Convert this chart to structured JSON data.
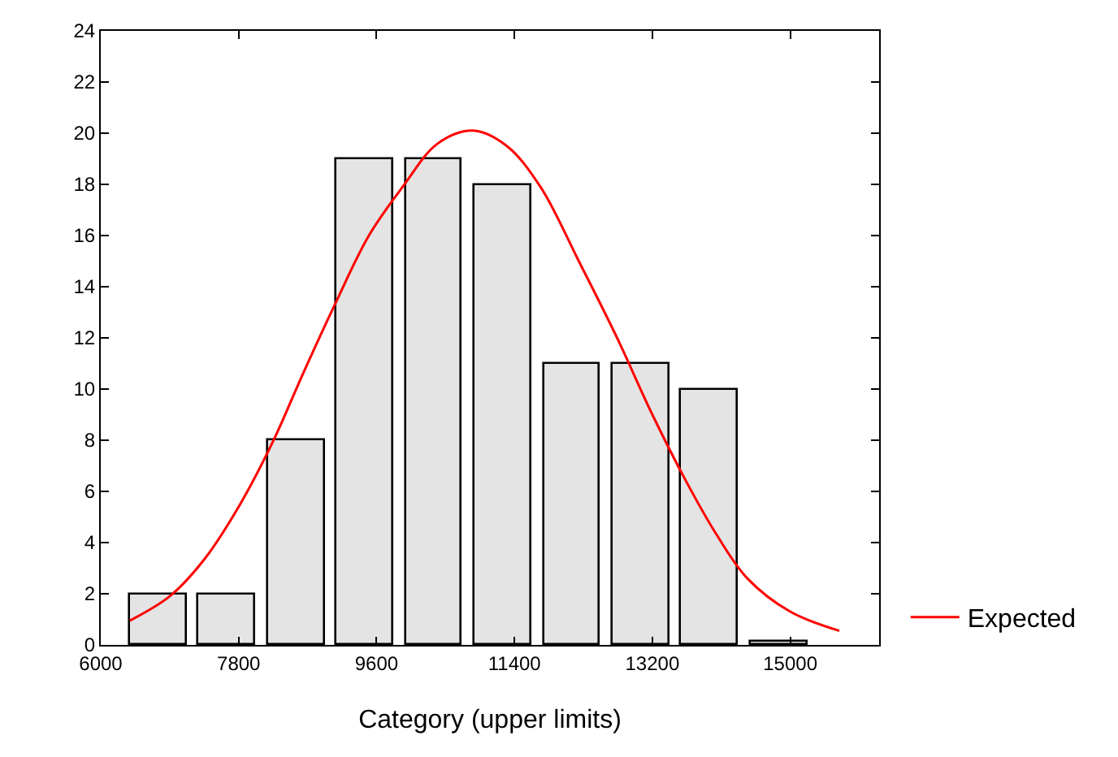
{
  "chart_data": {
    "type": "histogram",
    "xlabel": "Category (upper limits)",
    "xlim": [
      6000,
      16160
    ],
    "xticks": [
      6000,
      7800,
      9600,
      11400,
      13200,
      15000
    ],
    "ylim": [
      0,
      24
    ],
    "yticks": [
      0,
      2,
      4,
      6,
      8,
      10,
      12,
      14,
      16,
      18,
      20,
      22,
      24
    ],
    "legend": "bottom right",
    "series": [
      {
        "color": "#e4e4e4",
        "bins": [
          6300,
          7200,
          8100,
          9000,
          9900,
          10800,
          11700,
          12600,
          13500,
          14400,
          15300
        ],
        "values": [
          2,
          2,
          8,
          19,
          19,
          18,
          11,
          11,
          10,
          0.1
        ]
      },
      {
        "type": "line",
        "name": "Expected",
        "color": "#ff0000",
        "x": [
          6380,
          6900,
          7340,
          7800,
          8240,
          8640,
          9040,
          9500,
          9940,
          10400,
          10860,
          11300,
          11740,
          12240,
          12740,
          13200,
          13640,
          14040,
          14440,
          15000,
          15640
        ],
        "values": [
          0.95,
          1.9,
          3.3,
          5.4,
          7.9,
          10.6,
          13.2,
          16.0,
          17.9,
          19.6,
          20.1,
          19.5,
          17.9,
          15.0,
          12.0,
          9.0,
          6.4,
          4.3,
          2.6,
          1.3,
          0.55
        ]
      }
    ]
  }
}
